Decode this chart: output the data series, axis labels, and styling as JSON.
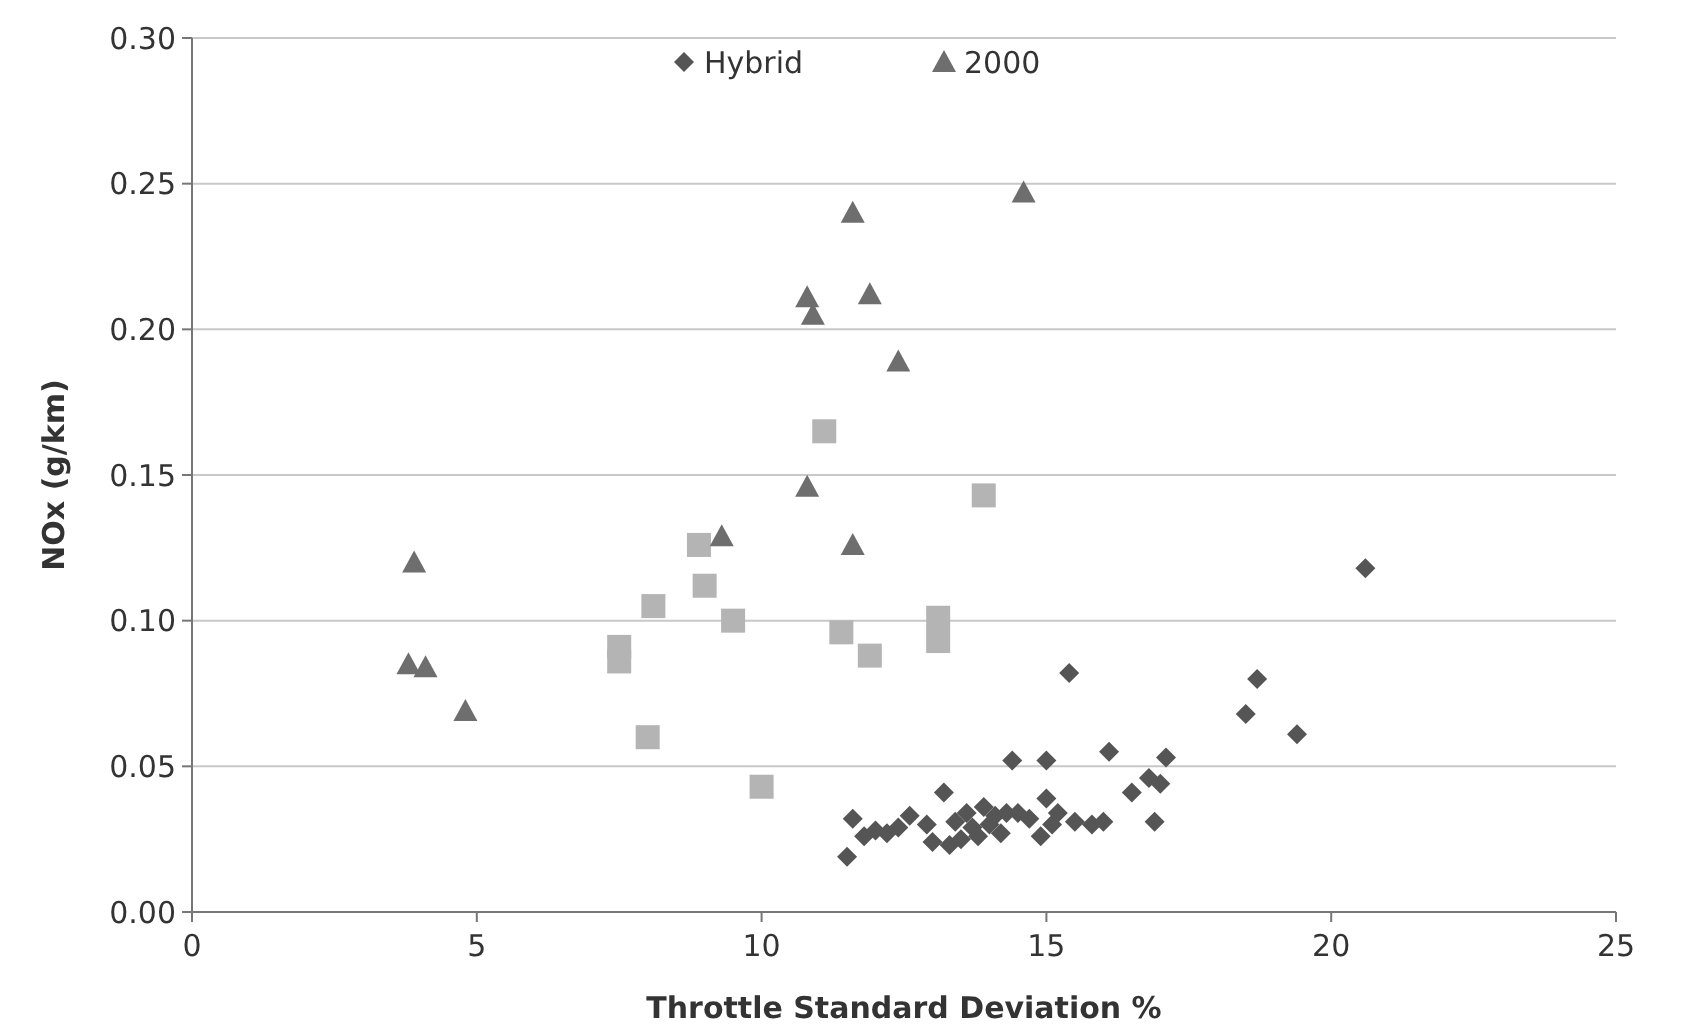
{
  "chart_data": {
    "type": "scatter",
    "xlabel": "Throttle Standard Deviation %",
    "ylabel": "NOx (g/km)",
    "xlim": [
      0,
      25
    ],
    "xticks": [
      0,
      5,
      10,
      15,
      20,
      25
    ],
    "ylim": [
      0,
      0.3
    ],
    "yticks": [
      {
        "value": 0,
        "label": "0.00"
      },
      {
        "value": 0.05,
        "label": "0.05"
      },
      {
        "value": 0.1,
        "label": "0.10"
      },
      {
        "value": 0.15,
        "label": "0.15"
      },
      {
        "value": 0.2,
        "label": "0.20"
      },
      {
        "value": 0.25,
        "label": "0.25"
      },
      {
        "value": 0.3,
        "label": "0.30"
      }
    ],
    "grid": "y",
    "legend": "top",
    "series": [
      {
        "name": "Hybrid",
        "color": "#555555",
        "marker": "diamond",
        "x": [
          11.5,
          11.6,
          11.8,
          12.0,
          12.2,
          12.4,
          12.6,
          12.9,
          13.0,
          13.2,
          13.3,
          13.4,
          13.5,
          13.6,
          13.7,
          13.8,
          13.9,
          14.0,
          14.1,
          14.2,
          14.3,
          14.4,
          14.5,
          14.7,
          14.9,
          15.0,
          15.0,
          15.1,
          15.2,
          15.4,
          15.5,
          15.8,
          16.0,
          16.1,
          16.5,
          16.8,
          16.9,
          17.0,
          17.1,
          18.5,
          18.7,
          19.4,
          20.6
        ],
        "values": [
          0.019,
          0.032,
          0.026,
          0.028,
          0.027,
          0.029,
          0.033,
          0.03,
          0.024,
          0.041,
          0.023,
          0.031,
          0.025,
          0.034,
          0.029,
          0.026,
          0.036,
          0.03,
          0.033,
          0.027,
          0.034,
          0.052,
          0.034,
          0.032,
          0.026,
          0.052,
          0.039,
          0.03,
          0.034,
          0.082,
          0.031,
          0.03,
          0.031,
          0.055,
          0.041,
          0.046,
          0.031,
          0.044,
          0.053,
          0.068,
          0.08,
          0.061,
          0.118
        ]
      },
      {
        "color": "#b4b4b4",
        "marker": "square",
        "x": [
          7.5,
          7.5,
          8.0,
          8.1,
          8.9,
          9.0,
          9.5,
          10.0,
          11.1,
          11.4,
          11.9,
          13.1,
          13.1,
          13.9
        ],
        "values": [
          0.086,
          0.091,
          0.06,
          0.105,
          0.126,
          0.112,
          0.1,
          0.043,
          0.165,
          0.096,
          0.088,
          0.093,
          0.101,
          0.143
        ]
      },
      {
        "name": "2000",
        "color": "#6e6e6e",
        "marker": "triangle",
        "x": [
          3.9,
          3.8,
          4.1,
          4.8,
          9.3,
          10.8,
          10.8,
          10.9,
          11.6,
          11.6,
          11.9,
          12.4,
          14.6
        ],
        "values": [
          0.12,
          0.085,
          0.084,
          0.069,
          0.129,
          0.146,
          0.211,
          0.205,
          0.126,
          0.24,
          0.212,
          0.189,
          0.247
        ]
      }
    ]
  }
}
